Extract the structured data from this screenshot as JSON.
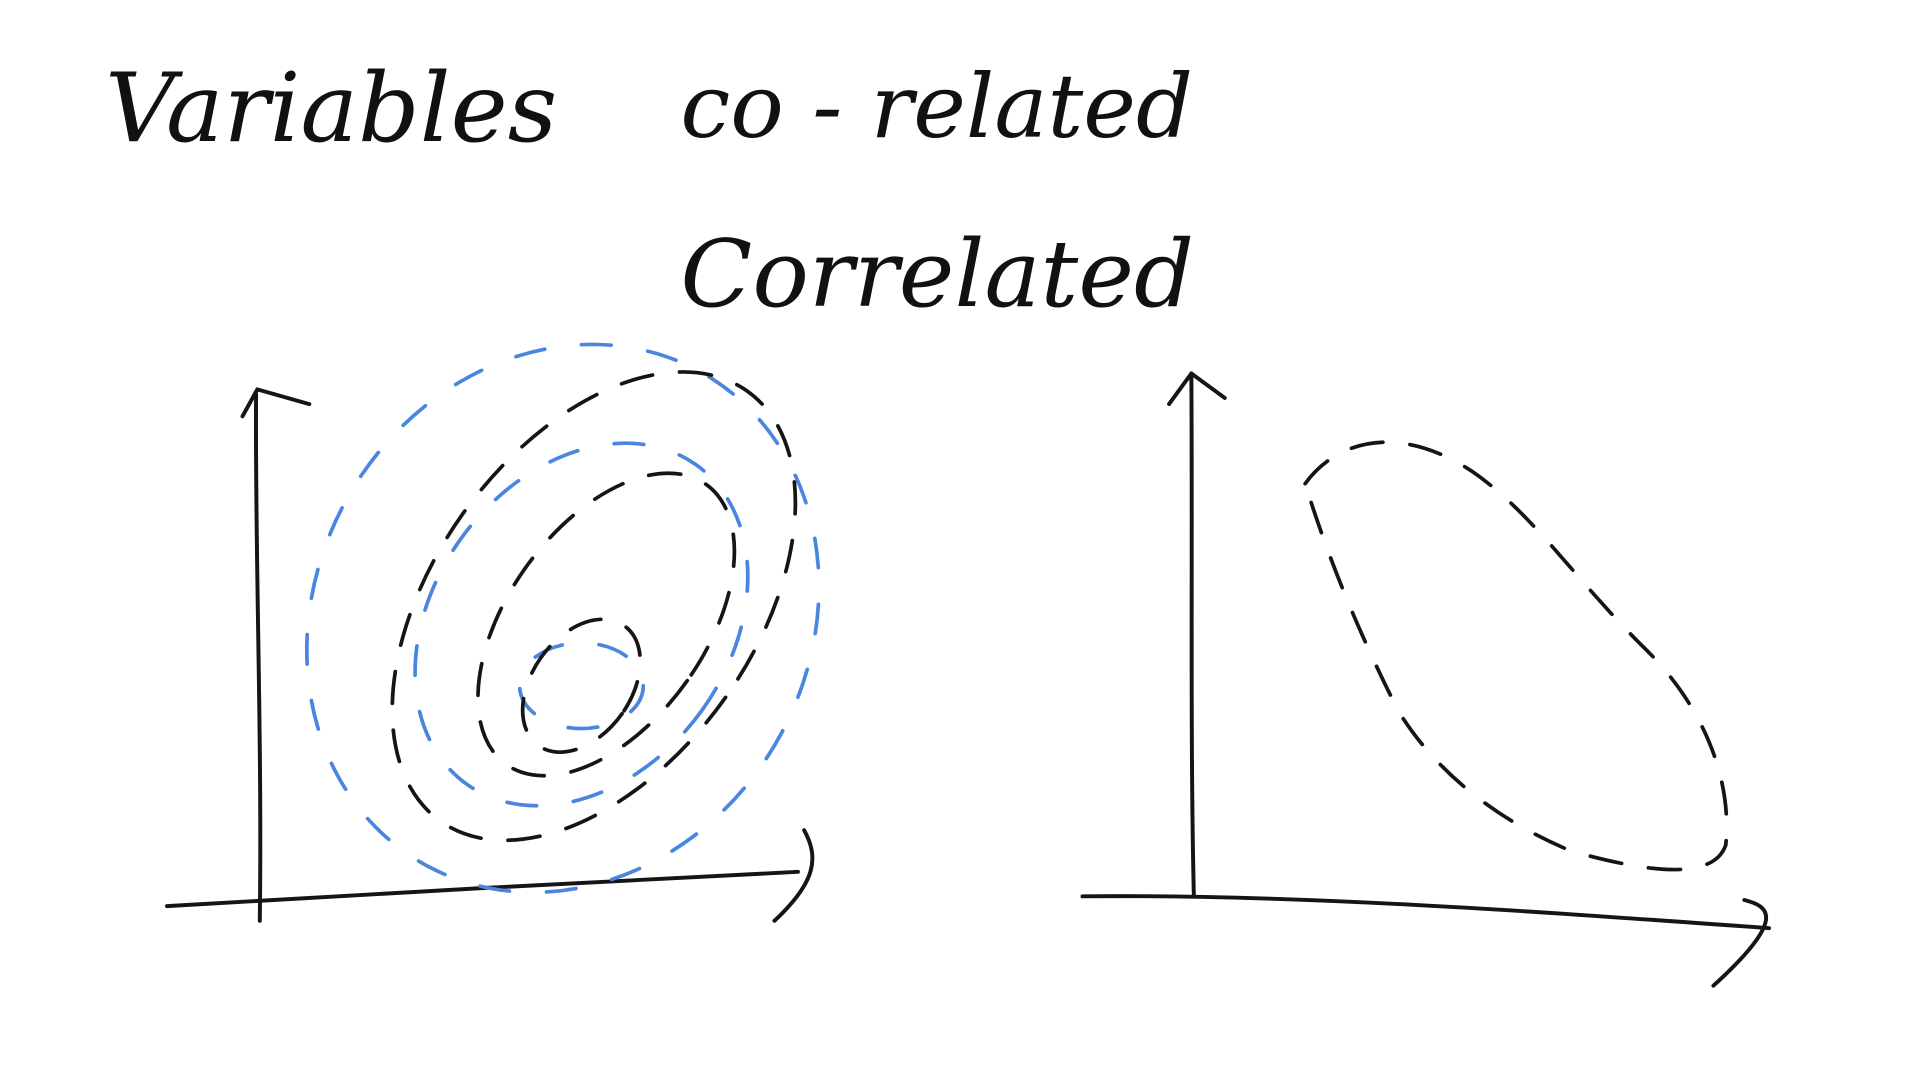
{
  "words": [
    "Variables",
    "co - related",
    "Correlated"
  ]
}
